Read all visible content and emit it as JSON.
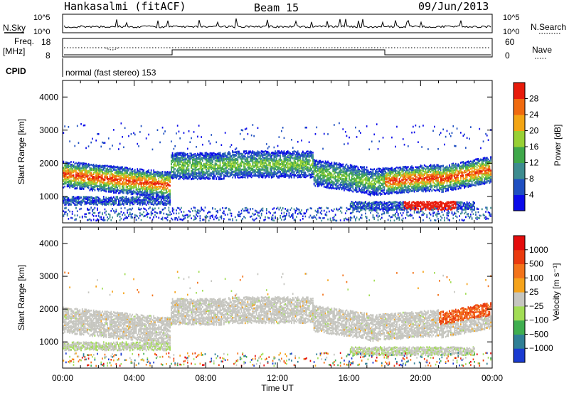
{
  "header": {
    "station": "Hankasalmi (fitACF)",
    "beam": "Beam 15",
    "date": "09/Jun/2013"
  },
  "top_panels": {
    "nsky_label": "N.Sky",
    "nsky_ticks": [
      "10^5",
      "10^0"
    ],
    "nsearch_label": "N.Search",
    "nsearch_ticks": [
      "10^5",
      "10^0"
    ],
    "freq_label_1": "Freq.",
    "freq_label_2": "[MHz]",
    "freq_ticks": [
      "18",
      "8"
    ],
    "nave_label": "Nave",
    "nave_ticks": [
      "60",
      "0"
    ],
    "cpid_label": "CPID",
    "cpid_text": "normal (fast stereo) 153"
  },
  "chart_data": [
    {
      "type": "heatmap",
      "name": "power",
      "ylabel": "Slant Range [km]",
      "ylim": [
        200,
        4500
      ],
      "yticks": [
        "1000",
        "2000",
        "3000",
        "4000"
      ],
      "xlim": [
        0,
        24
      ],
      "colorbar_label": "Power [dB]",
      "colorbar_ticks": [
        "4",
        "8",
        "12",
        "16",
        "20",
        "24",
        "28"
      ],
      "colorbar_colors": [
        "#0b0bea",
        "#1f4fc1",
        "#3d8c8f",
        "#3fa84a",
        "#98d034",
        "#f3a514",
        "#f06a0f",
        "#e81b0b"
      ]
    },
    {
      "type": "heatmap",
      "name": "velocity",
      "ylabel": "Slant Range [km]",
      "ylim": [
        200,
        4500
      ],
      "yticks": [
        "1000",
        "2000",
        "3000",
        "4000"
      ],
      "xlim": [
        0,
        24
      ],
      "xlabel": "Time UT",
      "xticks": [
        "00:00",
        "04:00",
        "08:00",
        "12:00",
        "16:00",
        "20:00",
        "00:00"
      ],
      "colorbar_label": "Velocity [m s⁻¹]",
      "colorbar_ticks": [
        "1000",
        "500",
        "100",
        "25",
        "−25",
        "−100",
        "−500",
        "−1000"
      ],
      "colorbar_colors": [
        "#1a3bd1",
        "#2f7f95",
        "#3fae4f",
        "#a2dd55",
        "#c6c6c0",
        "#f5a31b",
        "#f3731a",
        "#ea3a0e",
        "#e40c0c"
      ]
    }
  ]
}
